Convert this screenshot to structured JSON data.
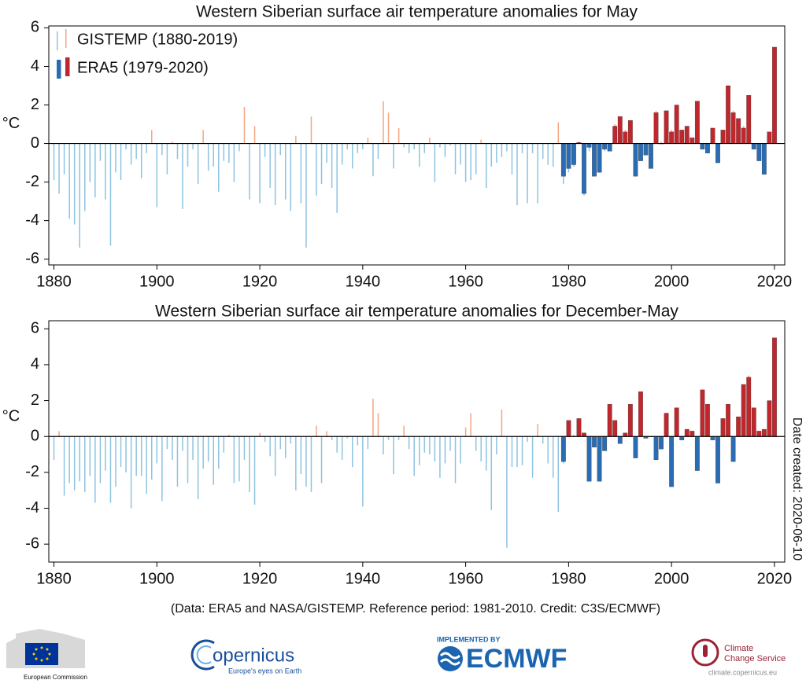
{
  "chart_data": [
    {
      "type": "bar",
      "title": "Western Siberian surface air temperature anomalies for May",
      "y_label": "°C",
      "legend": "upper left",
      "xlim": [
        1879,
        2022
      ],
      "xticks": [
        1880,
        1900,
        1920,
        1940,
        1960,
        1980,
        2000,
        2020
      ],
      "ylim": [
        -6.3,
        6.1
      ],
      "yticks": [
        -6,
        -4,
        -2,
        0,
        2,
        4,
        6
      ],
      "series": [
        {
          "name": "GISTEMP (1880-2019)",
          "color_positive": "#f4a582",
          "color_negative": "#8ec3e0",
          "x": [
            1880,
            1881,
            1882,
            1883,
            1884,
            1885,
            1886,
            1887,
            1888,
            1889,
            1890,
            1891,
            1892,
            1893,
            1894,
            1895,
            1896,
            1897,
            1898,
            1899,
            1900,
            1901,
            1902,
            1903,
            1904,
            1905,
            1906,
            1907,
            1908,
            1909,
            1910,
            1911,
            1912,
            1913,
            1914,
            1915,
            1916,
            1917,
            1918,
            1919,
            1920,
            1921,
            1922,
            1923,
            1924,
            1925,
            1926,
            1927,
            1928,
            1929,
            1930,
            1931,
            1932,
            1933,
            1934,
            1935,
            1936,
            1937,
            1938,
            1939,
            1940,
            1941,
            1942,
            1943,
            1944,
            1945,
            1946,
            1947,
            1948,
            1949,
            1950,
            1951,
            1952,
            1953,
            1954,
            1955,
            1956,
            1957,
            1958,
            1959,
            1960,
            1961,
            1962,
            1963,
            1964,
            1965,
            1966,
            1967,
            1968,
            1969,
            1970,
            1971,
            1972,
            1973,
            1974,
            1975,
            1976,
            1977,
            1978,
            1979,
            1980,
            1981,
            1982,
            1983,
            1984,
            1985,
            1986,
            1987,
            1988,
            1989,
            1990,
            1991,
            1992,
            1993,
            1994,
            1995,
            1996,
            1997,
            1998,
            1999,
            2000,
            2001,
            2002,
            2003,
            2004,
            2005,
            2006,
            2007,
            2008,
            2009,
            2010,
            2011,
            2012,
            2013,
            2014,
            2015,
            2016,
            2017,
            2018,
            2019
          ],
          "values": [
            -1.9,
            -2.6,
            -1.6,
            -3.9,
            -4.2,
            -5.4,
            -3.5,
            -2.0,
            -2.8,
            -0.9,
            -2.9,
            -5.3,
            -1.5,
            -1.9,
            -0.3,
            -1.1,
            -0.8,
            -1.8,
            -0.5,
            0.7,
            -3.3,
            -0.6,
            -1.6,
            0.1,
            -0.8,
            -3.4,
            -1.2,
            -0.3,
            -2.1,
            0.7,
            -1.4,
            -1.2,
            -2.5,
            -0.9,
            -1.0,
            -2.0,
            -0.4,
            1.9,
            -2.9,
            0.9,
            -3.1,
            -0.7,
            -2.3,
            -3.2,
            -0.6,
            -2.9,
            -3.5,
            0.4,
            -3.1,
            -5.4,
            1.4,
            -2.7,
            -2.1,
            -1.0,
            -2.3,
            -3.6,
            -1.1,
            -0.3,
            -1.3,
            -0.5,
            -0.3,
            0.3,
            -1.7,
            -0.8,
            2.2,
            1.6,
            -1.3,
            0.8,
            -0.2,
            -0.5,
            -0.3,
            -1.2,
            -0.5,
            0.3,
            -2.0,
            -0.2,
            -0.7,
            -0.1,
            -1.6,
            -1.1,
            -2.0,
            -1.9,
            -1.6,
            0.2,
            -2.3,
            -1.2,
            -1.0,
            -0.7,
            -0.4,
            -1.6,
            -3.2,
            -0.5,
            -3.1,
            -0.5,
            -3.1,
            -0.8,
            -1.1,
            -1.2,
            1.1,
            -2.1,
            -1.5,
            -1.2,
            0.1,
            -2.7,
            -0.4,
            -1.6,
            -1.5,
            -0.4,
            -0.2,
            1.0,
            1.4,
            0.7,
            1.2,
            -1.6,
            -0.8,
            -0.5,
            -1.2,
            1.7,
            0.1,
            1.7,
            0.7,
            2.0,
            0.7,
            0.9,
            0.2,
            2.2,
            -0.3,
            -0.5,
            0.8,
            -1.0,
            0.7,
            2.9,
            1.7,
            1.2,
            0.9,
            2.5,
            -0.3,
            -0.9,
            -1.5,
            0.6
          ]
        },
        {
          "name": "ERA5 (1979-2020)",
          "color_positive": "#c0272d",
          "color_negative": "#2a6cb3",
          "x": [
            1979,
            1980,
            1981,
            1982,
            1983,
            1984,
            1985,
            1986,
            1987,
            1988,
            1989,
            1990,
            1991,
            1992,
            1993,
            1994,
            1995,
            1996,
            1997,
            1998,
            1999,
            2000,
            2001,
            2002,
            2003,
            2004,
            2005,
            2006,
            2007,
            2008,
            2009,
            2010,
            2011,
            2012,
            2013,
            2014,
            2015,
            2016,
            2017,
            2018,
            2019,
            2020
          ],
          "values": [
            -1.7,
            -1.3,
            -1.1,
            0.05,
            -2.6,
            -0.2,
            -1.7,
            -1.5,
            -0.3,
            -0.4,
            0.9,
            1.4,
            0.6,
            1.2,
            -1.7,
            -0.9,
            -0.6,
            -1.3,
            1.6,
            0.0,
            1.7,
            0.6,
            2.0,
            0.7,
            0.9,
            0.3,
            2.2,
            -0.3,
            -0.5,
            0.8,
            -1.0,
            0.7,
            3.0,
            1.6,
            1.3,
            0.8,
            2.5,
            -0.3,
            -0.9,
            -1.6,
            0.6,
            5.0
          ]
        }
      ]
    },
    {
      "type": "bar",
      "title": "Western Siberian surface air temperature anomalies for December-May",
      "y_label": "°C",
      "xlim": [
        1879,
        2022
      ],
      "xticks": [
        1880,
        1900,
        1920,
        1940,
        1960,
        1980,
        2000,
        2020
      ],
      "ylim": [
        -7.0,
        6.45
      ],
      "yticks": [
        -6,
        -4,
        -2,
        0,
        2,
        4,
        6
      ],
      "series": [
        {
          "color_positive": "#f4a582",
          "color_negative": "#8ec3e0",
          "x": [
            1880,
            1881,
            1882,
            1883,
            1884,
            1885,
            1886,
            1887,
            1888,
            1889,
            1890,
            1891,
            1892,
            1893,
            1894,
            1895,
            1896,
            1897,
            1898,
            1899,
            1900,
            1901,
            1902,
            1903,
            1904,
            1905,
            1906,
            1907,
            1908,
            1909,
            1910,
            1911,
            1912,
            1913,
            1914,
            1915,
            1916,
            1917,
            1918,
            1919,
            1920,
            1921,
            1922,
            1923,
            1924,
            1925,
            1926,
            1927,
            1928,
            1929,
            1930,
            1931,
            1932,
            1933,
            1934,
            1935,
            1936,
            1937,
            1938,
            1939,
            1940,
            1941,
            1942,
            1943,
            1944,
            1945,
            1946,
            1947,
            1948,
            1949,
            1950,
            1951,
            1952,
            1953,
            1954,
            1955,
            1956,
            1957,
            1958,
            1959,
            1960,
            1961,
            1962,
            1963,
            1964,
            1965,
            1966,
            1967,
            1968,
            1969,
            1970,
            1971,
            1972,
            1973,
            1974,
            1975,
            1976,
            1977,
            1978,
            1979,
            1980,
            1981,
            1982,
            1983,
            1984,
            1985,
            1986,
            1987,
            1988,
            1989,
            1990,
            1991,
            1992,
            1993,
            1994,
            1995,
            1996,
            1997,
            1998,
            1999,
            2000,
            2001,
            2002,
            2003,
            2004,
            2005,
            2006,
            2007,
            2008,
            2009,
            2010,
            2011,
            2012,
            2013,
            2014,
            2015,
            2016,
            2017,
            2018,
            2019
          ],
          "values": [
            -1.3,
            0.3,
            -3.3,
            -2.6,
            -3.0,
            -2.5,
            -3.1,
            -2.2,
            -3.7,
            -2.6,
            -1.9,
            -3.7,
            -2.8,
            -1.7,
            -2.0,
            -4.0,
            -2.2,
            -2.2,
            -3.2,
            -2.4,
            -1.5,
            -3.6,
            -0.7,
            -1.3,
            -2.8,
            -0.8,
            -2.6,
            -1.3,
            -3.5,
            -1.8,
            -1.4,
            -2.7,
            -1.8,
            -0.9,
            0.1,
            -2.6,
            -2.5,
            -1.3,
            -3.1,
            -3.8,
            0.2,
            -0.3,
            -1.1,
            -2.2,
            -0.7,
            -1.2,
            -0.4,
            -3.0,
            -2.1,
            -2.8,
            -3.1,
            0.6,
            -2.6,
            0.3,
            -0.2,
            -0.9,
            -1.3,
            -0.1,
            -1.7,
            -0.5,
            -3.9,
            -0.7,
            2.1,
            1.3,
            -1.0,
            -0.2,
            -2.1,
            -0.2,
            0.6,
            -0.7,
            -2.2,
            -1.6,
            -0.9,
            -1.0,
            -1.4,
            -2.3,
            -1.5,
            -0.8,
            -2.6,
            -1.5,
            0.5,
            1.3,
            -0.8,
            -1.4,
            -1.9,
            -4.1,
            -1.0,
            1.5,
            -6.2,
            -1.7,
            -1.7,
            -1.6,
            -0.3,
            -2.3,
            0.7,
            -0.4,
            -1.5,
            -2.3,
            -4.2,
            -1.5,
            0.8,
            0.1,
            1.0,
            0.2,
            -2.4,
            -0.5,
            -2.4,
            -0.8,
            1.7,
            0.9,
            -0.4,
            0.2,
            1.7,
            -1.1,
            2.4,
            -0.1,
            0.0,
            -1.2,
            -0.7,
            1.3,
            -2.7,
            1.5,
            -0.2,
            0.4,
            0.3,
            -1.8,
            2.6,
            1.8,
            -0.2,
            -2.5,
            1.0,
            1.8,
            -1.3,
            1.1,
            2.8,
            3.4,
            1.5,
            0.3,
            0.4,
            2.0
          ]
        },
        {
          "color_positive": "#c0272d",
          "color_negative": "#2a6cb3",
          "x": [
            1979,
            1980,
            1981,
            1982,
            1983,
            1984,
            1985,
            1986,
            1987,
            1988,
            1989,
            1990,
            1991,
            1992,
            1993,
            1994,
            1995,
            1996,
            1997,
            1998,
            1999,
            2000,
            2001,
            2002,
            2003,
            2004,
            2005,
            2006,
            2007,
            2008,
            2009,
            2010,
            2011,
            2012,
            2013,
            2014,
            2015,
            2016,
            2017,
            2018,
            2019,
            2020
          ],
          "values": [
            -1.4,
            0.9,
            0.0,
            1.0,
            0.2,
            -2.5,
            -0.6,
            -2.5,
            -0.8,
            1.8,
            0.9,
            -0.4,
            0.2,
            1.8,
            -1.2,
            2.5,
            -0.1,
            0.0,
            -1.3,
            -0.7,
            1.3,
            -2.8,
            1.6,
            -0.2,
            0.4,
            0.3,
            -1.9,
            2.6,
            1.8,
            -0.2,
            -2.6,
            1.0,
            1.8,
            -1.4,
            1.1,
            2.9,
            3.3,
            1.6,
            0.3,
            0.4,
            2.0,
            5.5
          ]
        }
      ]
    }
  ],
  "footer": "(Data: ERA5 and NASA/GISTEMP.  Reference period: 1981-2010.  Credit: C3S/ECMWF)",
  "date_created": "Date created: 2020-06-10",
  "logos": {
    "ec": "European Commission",
    "copernicus": "opernicus",
    "copernicus_tagline": "Europe's eyes on Earth",
    "implemented_by": "IMPLEMENTED BY",
    "ecmwf": "ECMWF",
    "c3s_1": "Climate",
    "c3s_2": "Change Service",
    "c3s_url": "climate.copernicus.eu"
  }
}
